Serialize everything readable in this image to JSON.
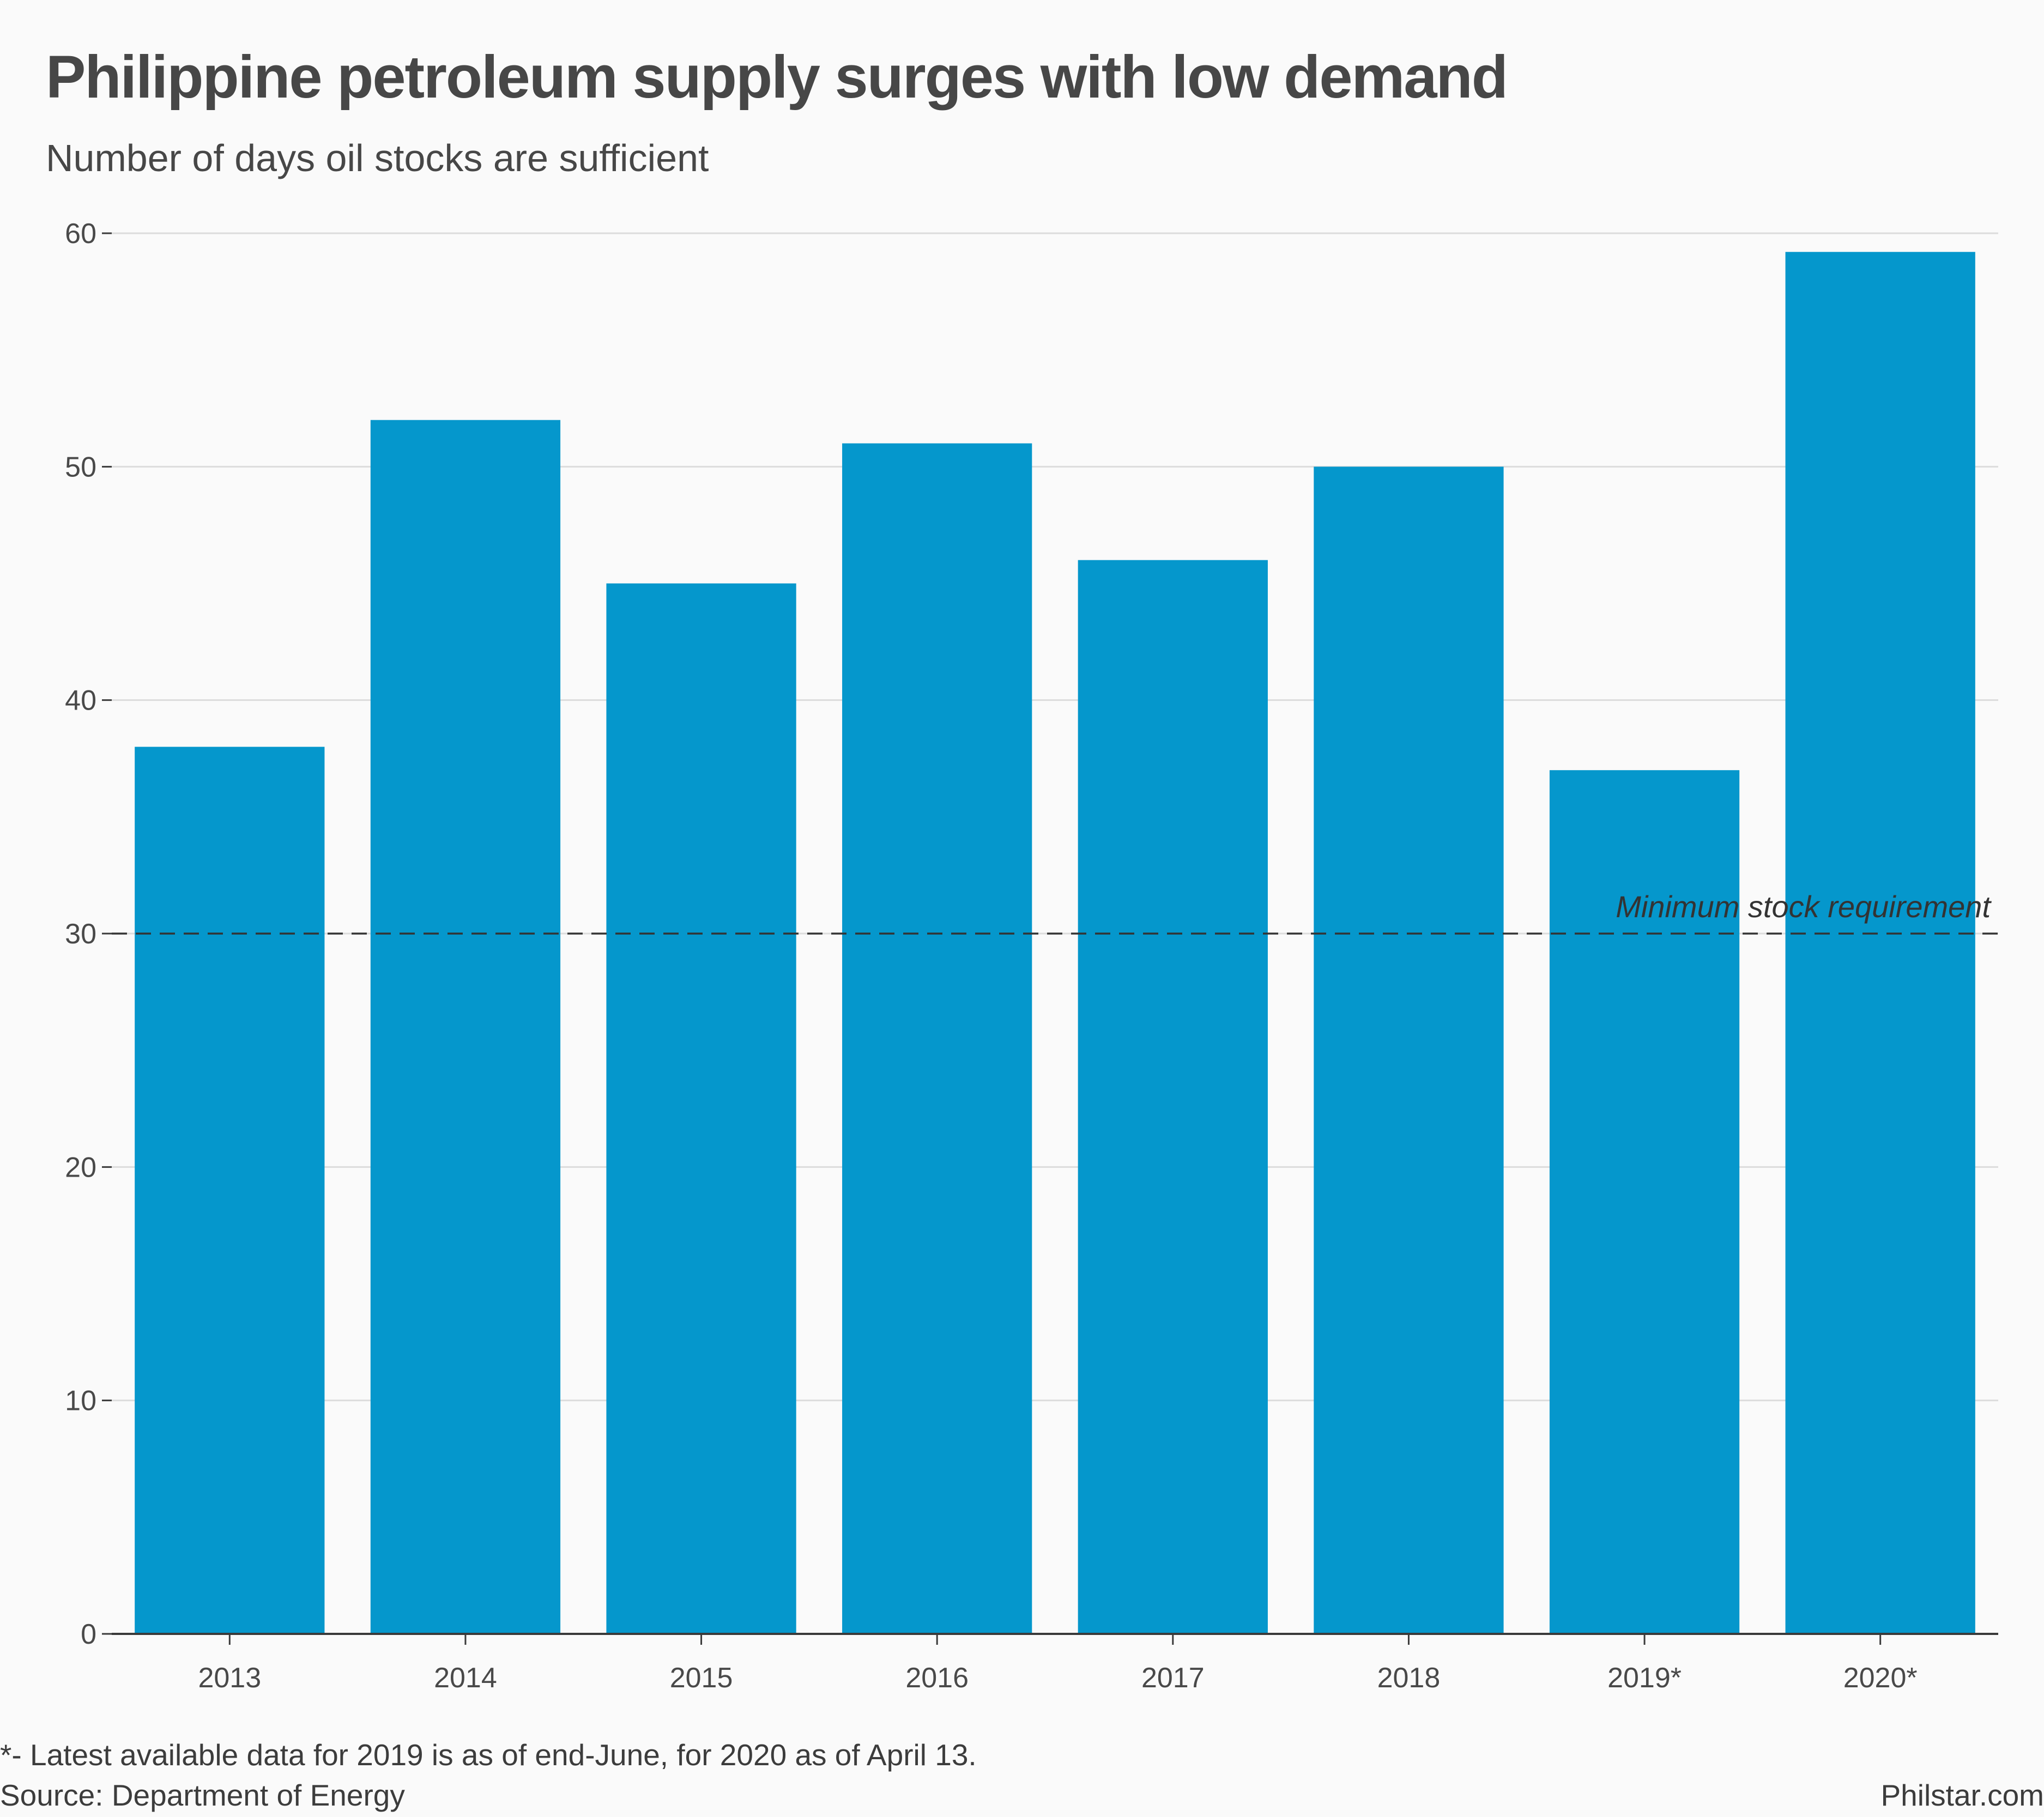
{
  "header": {
    "title": "Philippine petroleum supply surges with low demand",
    "subtitle": "Number of days oil stocks are sufficient"
  },
  "footer": {
    "note": "*- Latest available data for 2019 is as of end-June, for 2020 as of April 13.",
    "source": "Source: Department of Energy",
    "credit": "Philstar.com"
  },
  "colors": {
    "bar": "#0597cc",
    "grid": "#dcdcdc",
    "axis": "#3a3a3a",
    "reference_line": "#333333"
  },
  "chart_data": {
    "type": "bar",
    "title": "Philippine petroleum supply surges with low demand",
    "subtitle": "Number of days oil stocks are sufficient",
    "categories": [
      "2013",
      "2014",
      "2015",
      "2016",
      "2017",
      "2018",
      "2019*",
      "2020*"
    ],
    "values": [
      38,
      52,
      45,
      51,
      46,
      50,
      37,
      59.2
    ],
    "ylim": [
      0,
      60
    ],
    "yticks": [
      0,
      10,
      20,
      30,
      40,
      50,
      60
    ],
    "grid": true,
    "legend": "none",
    "reference_line": {
      "value": 30,
      "style": "dashed",
      "label": "Minimum stock requirement"
    }
  }
}
